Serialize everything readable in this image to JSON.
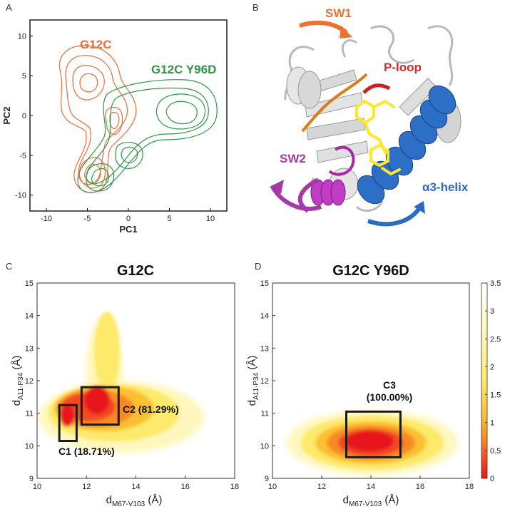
{
  "panels": {
    "a": "A",
    "b": "B",
    "c": "C",
    "d": "D"
  },
  "chart_data": [
    {
      "panel": "A",
      "type": "contour",
      "title": "",
      "xlabel": "PC1",
      "ylabel": "PC2",
      "xlim": [
        -12,
        12
      ],
      "ylim": [
        -12,
        12
      ],
      "xticks": [
        "-10",
        "-5",
        "0",
        "5",
        "10"
      ],
      "yticks": [
        "10",
        "5",
        "0",
        "-5",
        "-10"
      ],
      "series": [
        {
          "name": "G12C",
          "color": "#ee6c3a",
          "levels": 4,
          "modes": [
            {
              "x": -5.5,
              "y": 4.0
            },
            {
              "x": -2.0,
              "y": -2.0
            },
            {
              "x": -3.5,
              "y": -8.5
            }
          ]
        },
        {
          "name": "G12C Y96D",
          "color": "#2e9a48",
          "levels": 4,
          "modes": [
            {
              "x": 6.5,
              "y": 1.5
            },
            {
              "x": 0.5,
              "y": -4.0
            },
            {
              "x": -3.0,
              "y": -8.0
            }
          ]
        }
      ]
    },
    {
      "panel": "B",
      "type": "structure",
      "labels": [
        {
          "text": "SW1",
          "color": "#f07030"
        },
        {
          "text": "P-loop",
          "color": "#d42a2a"
        },
        {
          "text": "SW2",
          "color": "#a43aa8"
        },
        {
          "text": "α3-helix",
          "color": "#2b6bc2"
        }
      ]
    },
    {
      "panel": "C",
      "type": "heatmap",
      "title": "G12C",
      "xlabel_main": "d",
      "xlabel_sub": "M67-V103",
      "ylabel_main": "d",
      "ylabel_sub": "A11-P34",
      "unit": "(Å)",
      "xlim": [
        10,
        18
      ],
      "ylim": [
        9,
        15
      ],
      "xticks": [
        10,
        12,
        14,
        16,
        18
      ],
      "yticks": [
        9,
        10,
        11,
        12,
        13,
        14,
        15
      ],
      "clusters": [
        {
          "name": "C1",
          "percent": "(18.71%)",
          "x0": 10.9,
          "x1": 11.6,
          "y0": 10.15,
          "y1": 11.25
        },
        {
          "name": "C2",
          "percent": "(81.29%)",
          "x0": 11.8,
          "x1": 13.3,
          "y0": 10.65,
          "y1": 11.8
        }
      ]
    },
    {
      "panel": "D",
      "type": "heatmap",
      "title": "G12C Y96D",
      "xlabel_main": "d",
      "xlabel_sub": "M67-V103",
      "ylabel_main": "d",
      "ylabel_sub": "A11-P34",
      "unit": "(Å)",
      "xlim": [
        10,
        18
      ],
      "ylim": [
        9,
        15
      ],
      "xticks": [
        10,
        12,
        14,
        16,
        18
      ],
      "yticks": [
        9,
        10,
        11,
        12,
        13,
        14,
        15
      ],
      "clusters": [
        {
          "name": "C3",
          "percent": "(100.00%)",
          "x0": 13.0,
          "x1": 15.2,
          "y0": 9.65,
          "y1": 11.05
        }
      ],
      "colorbar": {
        "min": 0,
        "max": 3.5,
        "ticks": [
          "3.5",
          "3",
          "2.5",
          "2",
          "1.5",
          "1",
          "0.5",
          "0"
        ]
      }
    }
  ]
}
